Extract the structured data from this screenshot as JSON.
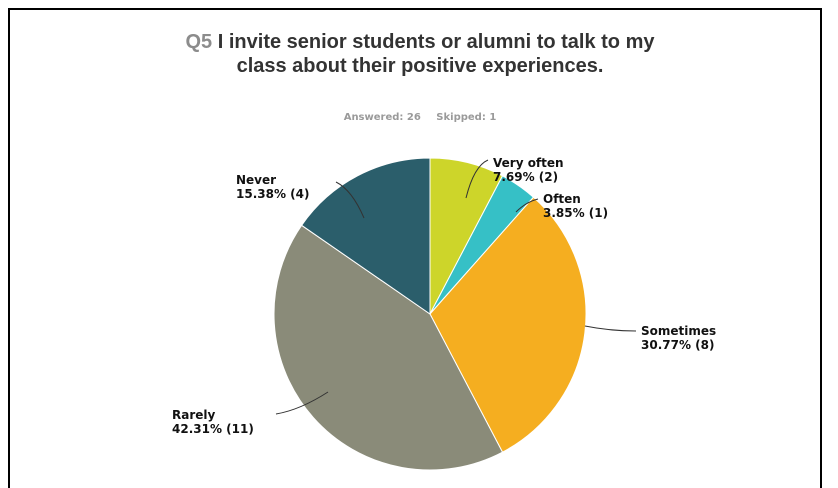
{
  "title": {
    "qnum": "Q5",
    "text": "I invite senior students or alumni to talk to my class about their positive experiences."
  },
  "meta": {
    "answered": "Answered: 26",
    "skipped": "Skipped: 1"
  },
  "chart_data": {
    "type": "pie",
    "title": "Q5 I invite senior students or alumni to talk to my class about their positive experiences.",
    "series": [
      {
        "name": "Very often",
        "value": 7.69,
        "count": 2,
        "label": "7.69% (2)",
        "color": "#cdd52a"
      },
      {
        "name": "Often",
        "value": 3.85,
        "count": 1,
        "label": "3.85% (1)",
        "color": "#36c0c6"
      },
      {
        "name": "Sometimes",
        "value": 30.77,
        "count": 8,
        "label": "30.77% (8)",
        "color": "#f5ae20"
      },
      {
        "name": "Rarely",
        "value": 42.31,
        "count": 11,
        "label": "42.31% (11)",
        "color": "#8a8b79"
      },
      {
        "name": "Never",
        "value": 15.38,
        "count": 4,
        "label": "15.38% (4)",
        "color": "#2b5e6b"
      }
    ],
    "start": "12 o'clock",
    "direction": "clockwise"
  }
}
